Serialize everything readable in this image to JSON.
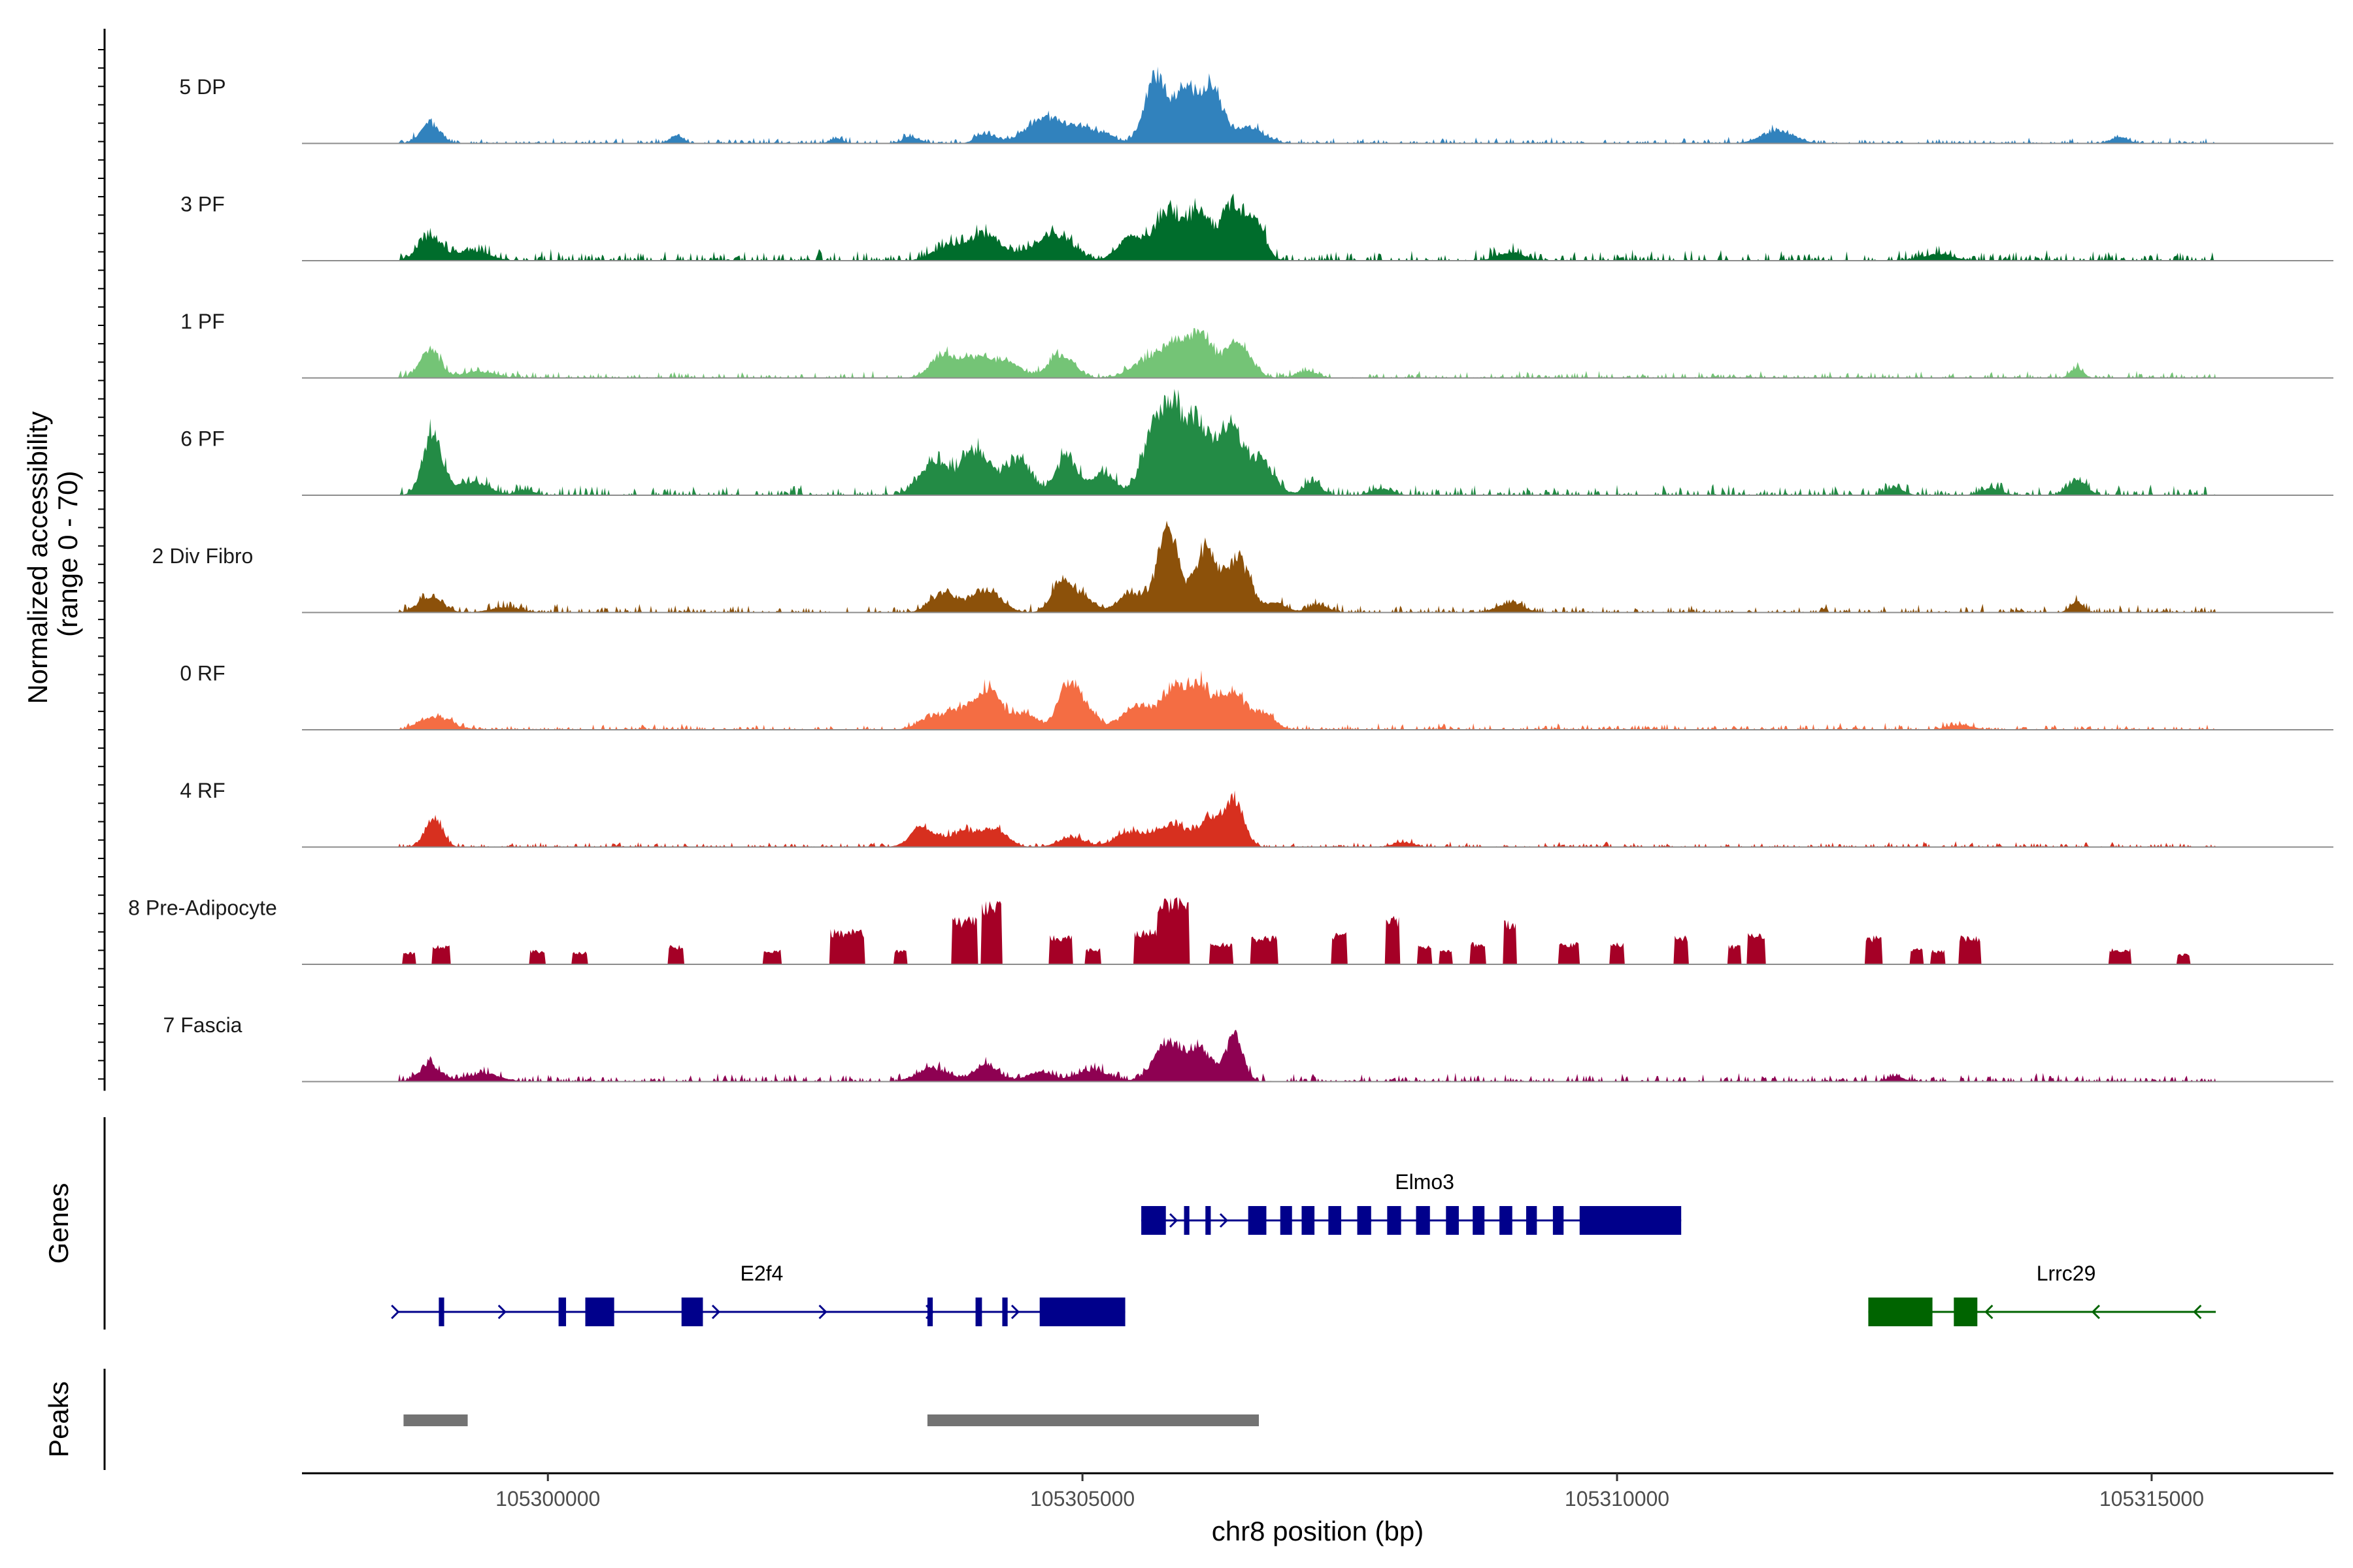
{
  "chart_data": {
    "type": "area",
    "title": "",
    "xlabel": "chr8 position (bp)",
    "ylabel": "Normalized accessibility\n(range 0 - 70)",
    "ylabel_lines": [
      "Normalized accessibility",
      "(range 0 - 70)"
    ],
    "ylim": [
      0,
      70
    ],
    "xlim": [
      105297700,
      105316700
    ],
    "x_ticks": [
      105300000,
      105305000,
      105310000,
      105315000
    ],
    "x_tick_labels": [
      "105300000",
      "105305000",
      "105310000",
      "105315000"
    ],
    "track_titles": {
      "genes": "Genes",
      "peaks": "Peaks"
    },
    "data_range": [
      105298600,
      105315600
    ],
    "series": [
      {
        "name": "5 DP",
        "color": "#3182BD",
        "peaks": [
          [
            105298900,
            12,
            90
          ],
          [
            105301200,
            5,
            60
          ],
          [
            105302700,
            3,
            60
          ],
          [
            105303400,
            4,
            80
          ],
          [
            105304100,
            6,
            90
          ],
          [
            105304650,
            16,
            170
          ],
          [
            105305000,
            9,
            120
          ],
          [
            105305230,
            5,
            80
          ],
          [
            105305700,
            42,
            110
          ],
          [
            105305970,
            33,
            80
          ],
          [
            105306200,
            37,
            100
          ],
          [
            105306550,
            10,
            140
          ],
          [
            105311500,
            8,
            150
          ],
          [
            105314700,
            4,
            80
          ]
        ],
        "noise": 1.4,
        "seed": 11
      },
      {
        "name": "3 PF",
        "color": "#006D2C",
        "peaks": [
          [
            105298900,
            15,
            110
          ],
          [
            105299300,
            6,
            150
          ],
          [
            105303750,
            9,
            140
          ],
          [
            105304100,
            16,
            150
          ],
          [
            105304600,
            8,
            150
          ],
          [
            105304800,
            12,
            140
          ],
          [
            105305450,
            14,
            120
          ],
          [
            105305800,
            30,
            130
          ],
          [
            105306100,
            28,
            110
          ],
          [
            105306400,
            34,
            100
          ],
          [
            105306620,
            22,
            90
          ],
          [
            105309000,
            5,
            120
          ],
          [
            105313000,
            4,
            150
          ]
        ],
        "noise": 2.8,
        "seed": 23
      },
      {
        "name": "1 PF",
        "color": "#74C476",
        "peaks": [
          [
            105298900,
            18,
            90
          ],
          [
            105299350,
            4,
            150
          ],
          [
            105303700,
            14,
            120
          ],
          [
            105304000,
            12,
            130
          ],
          [
            105304300,
            10,
            120
          ],
          [
            105304800,
            14,
            120
          ],
          [
            105305600,
            10,
            150
          ],
          [
            105305850,
            18,
            120
          ],
          [
            105306100,
            26,
            110
          ],
          [
            105306450,
            22,
            120
          ],
          [
            105307100,
            4,
            100
          ],
          [
            105314300,
            6,
            60
          ]
        ],
        "noise": 1.8,
        "seed": 37
      },
      {
        "name": "6 PF",
        "color": "#238B45",
        "peaks": [
          [
            105298920,
            37,
            90
          ],
          [
            105299300,
            8,
            150
          ],
          [
            105299800,
            3,
            80
          ],
          [
            105303600,
            20,
            130
          ],
          [
            105304000,
            28,
            140
          ],
          [
            105304400,
            22,
            120
          ],
          [
            105304850,
            24,
            100
          ],
          [
            105305200,
            14,
            110
          ],
          [
            105305650,
            30,
            110
          ],
          [
            105305850,
            48,
            120
          ],
          [
            105306100,
            40,
            110
          ],
          [
            105306380,
            42,
            100
          ],
          [
            105306650,
            22,
            130
          ],
          [
            105307150,
            8,
            80
          ],
          [
            105307800,
            4,
            100
          ],
          [
            105312600,
            5,
            80
          ],
          [
            105313500,
            4,
            100
          ],
          [
            105314300,
            9,
            90
          ]
        ],
        "noise": 2.5,
        "seed": 41
      },
      {
        "name": "2 Div Fibro",
        "color": "#8C510A",
        "peaks": [
          [
            105298900,
            10,
            110
          ],
          [
            105299600,
            3,
            150
          ],
          [
            105303700,
            12,
            120
          ],
          [
            105304100,
            14,
            140
          ],
          [
            105304800,
            20,
            90
          ],
          [
            105305000,
            10,
            100
          ],
          [
            105305450,
            12,
            120
          ],
          [
            105305800,
            52,
            100
          ],
          [
            105306150,
            40,
            100
          ],
          [
            105306450,
            34,
            110
          ],
          [
            105306800,
            6,
            100
          ],
          [
            105307200,
            5,
            90
          ],
          [
            105309000,
            6,
            120
          ],
          [
            105314300,
            7,
            60
          ]
        ],
        "noise": 2.0,
        "seed": 53
      },
      {
        "name": "0 RF",
        "color": "#F46D43",
        "peaks": [
          [
            105298950,
            8,
            140
          ],
          [
            105303600,
            8,
            130
          ],
          [
            105303950,
            14,
            150
          ],
          [
            105304150,
            18,
            110
          ],
          [
            105304450,
            10,
            110
          ],
          [
            105304850,
            20,
            100
          ],
          [
            105305000,
            14,
            120
          ],
          [
            105305500,
            14,
            130
          ],
          [
            105305850,
            26,
            120
          ],
          [
            105306100,
            26,
            100
          ],
          [
            105306400,
            24,
            120
          ],
          [
            105306700,
            10,
            100
          ],
          [
            105313200,
            3,
            120
          ]
        ],
        "noise": 1.5,
        "seed": 67
      },
      {
        "name": "4 RF",
        "color": "#D7301F",
        "peaks": [
          [
            105298930,
            18,
            80
          ],
          [
            105303500,
            12,
            110
          ],
          [
            105303900,
            10,
            140
          ],
          [
            105304200,
            10,
            110
          ],
          [
            105304900,
            6,
            120
          ],
          [
            105305450,
            9,
            140
          ],
          [
            105305850,
            14,
            150
          ],
          [
            105306200,
            16,
            100
          ],
          [
            105306420,
            28,
            90
          ],
          [
            105308000,
            3,
            100
          ]
        ],
        "noise": 1.3,
        "seed": 79
      },
      {
        "name": "8 Pre-Adipocyte",
        "color": "#A50026",
        "peaks": [],
        "noise": 0,
        "seed": 83,
        "blocks": [
          [
            105298700,
            8,
            60
          ],
          [
            105299000,
            12,
            80
          ],
          [
            105299900,
            9,
            70
          ],
          [
            105300300,
            8,
            70
          ],
          [
            105301200,
            12,
            70
          ],
          [
            105302100,
            9,
            80
          ],
          [
            105302800,
            22,
            160
          ],
          [
            105303300,
            9,
            60
          ],
          [
            105303900,
            30,
            120
          ],
          [
            105304150,
            40,
            100
          ],
          [
            105304800,
            18,
            110
          ],
          [
            105305100,
            10,
            70
          ],
          [
            105305600,
            22,
            120
          ],
          [
            105305850,
            42,
            150
          ],
          [
            105306300,
            14,
            110
          ],
          [
            105306700,
            18,
            120
          ],
          [
            105307400,
            20,
            70
          ],
          [
            105307900,
            30,
            70
          ],
          [
            105308200,
            12,
            60
          ],
          [
            105308400,
            9,
            60
          ],
          [
            105308700,
            14,
            70
          ],
          [
            105309000,
            28,
            60
          ],
          [
            105309550,
            14,
            90
          ],
          [
            105310000,
            14,
            70
          ],
          [
            105310600,
            18,
            70
          ],
          [
            105311100,
            12,
            60
          ],
          [
            105311300,
            20,
            80
          ],
          [
            105312400,
            18,
            80
          ],
          [
            105312800,
            10,
            60
          ],
          [
            105313000,
            9,
            60
          ],
          [
            105313300,
            18,
            100
          ],
          [
            105314700,
            10,
            100
          ],
          [
            105315300,
            7,
            60
          ]
        ]
      },
      {
        "name": "7 Fascia",
        "color": "#8E0152",
        "peaks": [
          [
            105298900,
            10,
            100
          ],
          [
            105299400,
            5,
            150
          ],
          [
            105303600,
            8,
            150
          ],
          [
            105304100,
            9,
            120
          ],
          [
            105304600,
            6,
            120
          ],
          [
            105305100,
            7,
            150
          ],
          [
            105305800,
            24,
            130
          ],
          [
            105306100,
            20,
            110
          ],
          [
            105306420,
            28,
            80
          ],
          [
            105312600,
            3,
            80
          ]
        ],
        "noise": 2.0,
        "seed": 97
      }
    ],
    "genes": [
      {
        "name": "E2f4",
        "strand": "+",
        "color": "#00008B",
        "row": 1,
        "start": 105298600,
        "end": 105305400,
        "label_pos": 105302000,
        "exons": [
          [
            105298980,
            105299030
          ],
          [
            105300100,
            105300170
          ],
          [
            105300350,
            105300620
          ],
          [
            105301250,
            105301450
          ],
          [
            105303550,
            105303600
          ],
          [
            105304000,
            105304060
          ],
          [
            105304250,
            105304300
          ],
          [
            105304600,
            105305400
          ]
        ],
        "arrows": [
          105298600,
          105299600,
          105301600,
          105302600,
          105303600,
          105304400
        ]
      },
      {
        "name": "Elmo3",
        "strand": "+",
        "color": "#00008B",
        "row": 0,
        "start": 105305550,
        "end": 105310600,
        "label_pos": 105308200,
        "exons": [
          [
            105305550,
            105305780
          ],
          [
            105305950,
            105306000
          ],
          [
            105306150,
            105306200
          ],
          [
            105306550,
            105306720
          ],
          [
            105306850,
            105306960
          ],
          [
            105307050,
            105307170
          ],
          [
            105307300,
            105307420
          ],
          [
            105307570,
            105307700
          ],
          [
            105307850,
            105307980
          ],
          [
            105308120,
            105308250
          ],
          [
            105308400,
            105308520
          ],
          [
            105308650,
            105308760
          ],
          [
            105308900,
            105309020
          ],
          [
            105309150,
            105309250
          ],
          [
            105309400,
            105309500
          ],
          [
            105309650,
            105310600
          ]
        ],
        "arrows": [
          105305880,
          105306350,
          105307700
        ]
      },
      {
        "name": "Lrrc29",
        "strand": "-",
        "color": "#006400",
        "row": 1,
        "start": 105312350,
        "end": 105315600,
        "label_pos": 105314200,
        "exons": [
          [
            105312350,
            105312950
          ],
          [
            105313150,
            105313370
          ]
        ],
        "arrows": [
          105313450,
          105314450,
          105315400
        ]
      }
    ],
    "peaks_track": [
      [
        105298650,
        105299250
      ],
      [
        105303550,
        105306650
      ]
    ]
  }
}
